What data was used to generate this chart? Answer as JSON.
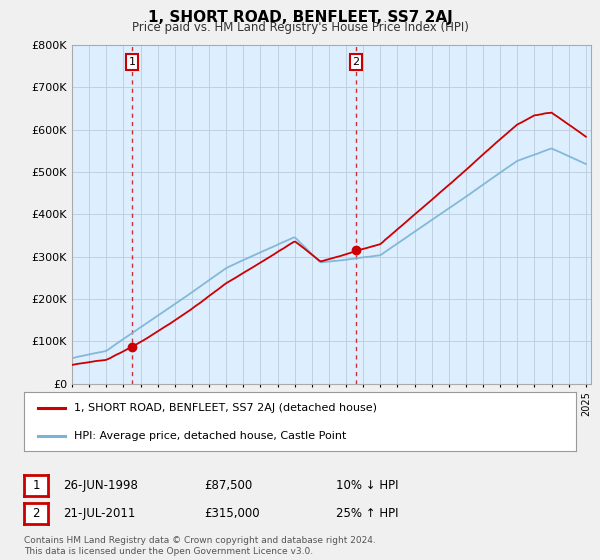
{
  "title": "1, SHORT ROAD, BENFLEET, SS7 2AJ",
  "subtitle": "Price paid vs. HM Land Registry's House Price Index (HPI)",
  "ylim": [
    0,
    800000
  ],
  "yticks": [
    0,
    100000,
    200000,
    300000,
    400000,
    500000,
    600000,
    700000,
    800000
  ],
  "ytick_labels": [
    "£0",
    "£100K",
    "£200K",
    "£300K",
    "£400K",
    "£500K",
    "£600K",
    "£700K",
    "£800K"
  ],
  "legend_line1": "1, SHORT ROAD, BENFLEET, SS7 2AJ (detached house)",
  "legend_line2": "HPI: Average price, detached house, Castle Point",
  "sale1_date": "26-JUN-1998",
  "sale1_price": "£87,500",
  "sale1_hpi": "10% ↓ HPI",
  "sale2_date": "21-JUL-2011",
  "sale2_price": "£315,000",
  "sale2_hpi": "25% ↑ HPI",
  "footnote": "Contains HM Land Registry data © Crown copyright and database right 2024.\nThis data is licensed under the Open Government Licence v3.0.",
  "red_color": "#cc0000",
  "blue_color": "#7ab3d4",
  "bg_color": "#f0f0f0",
  "plot_bg": "#ddeeff",
  "grid_color": "#bbccdd",
  "vline_color": "#cc0000",
  "t_sale1": 1998.5,
  "t_sale2": 2011.583,
  "sale1_price_val": 87500,
  "sale2_price_val": 315000
}
